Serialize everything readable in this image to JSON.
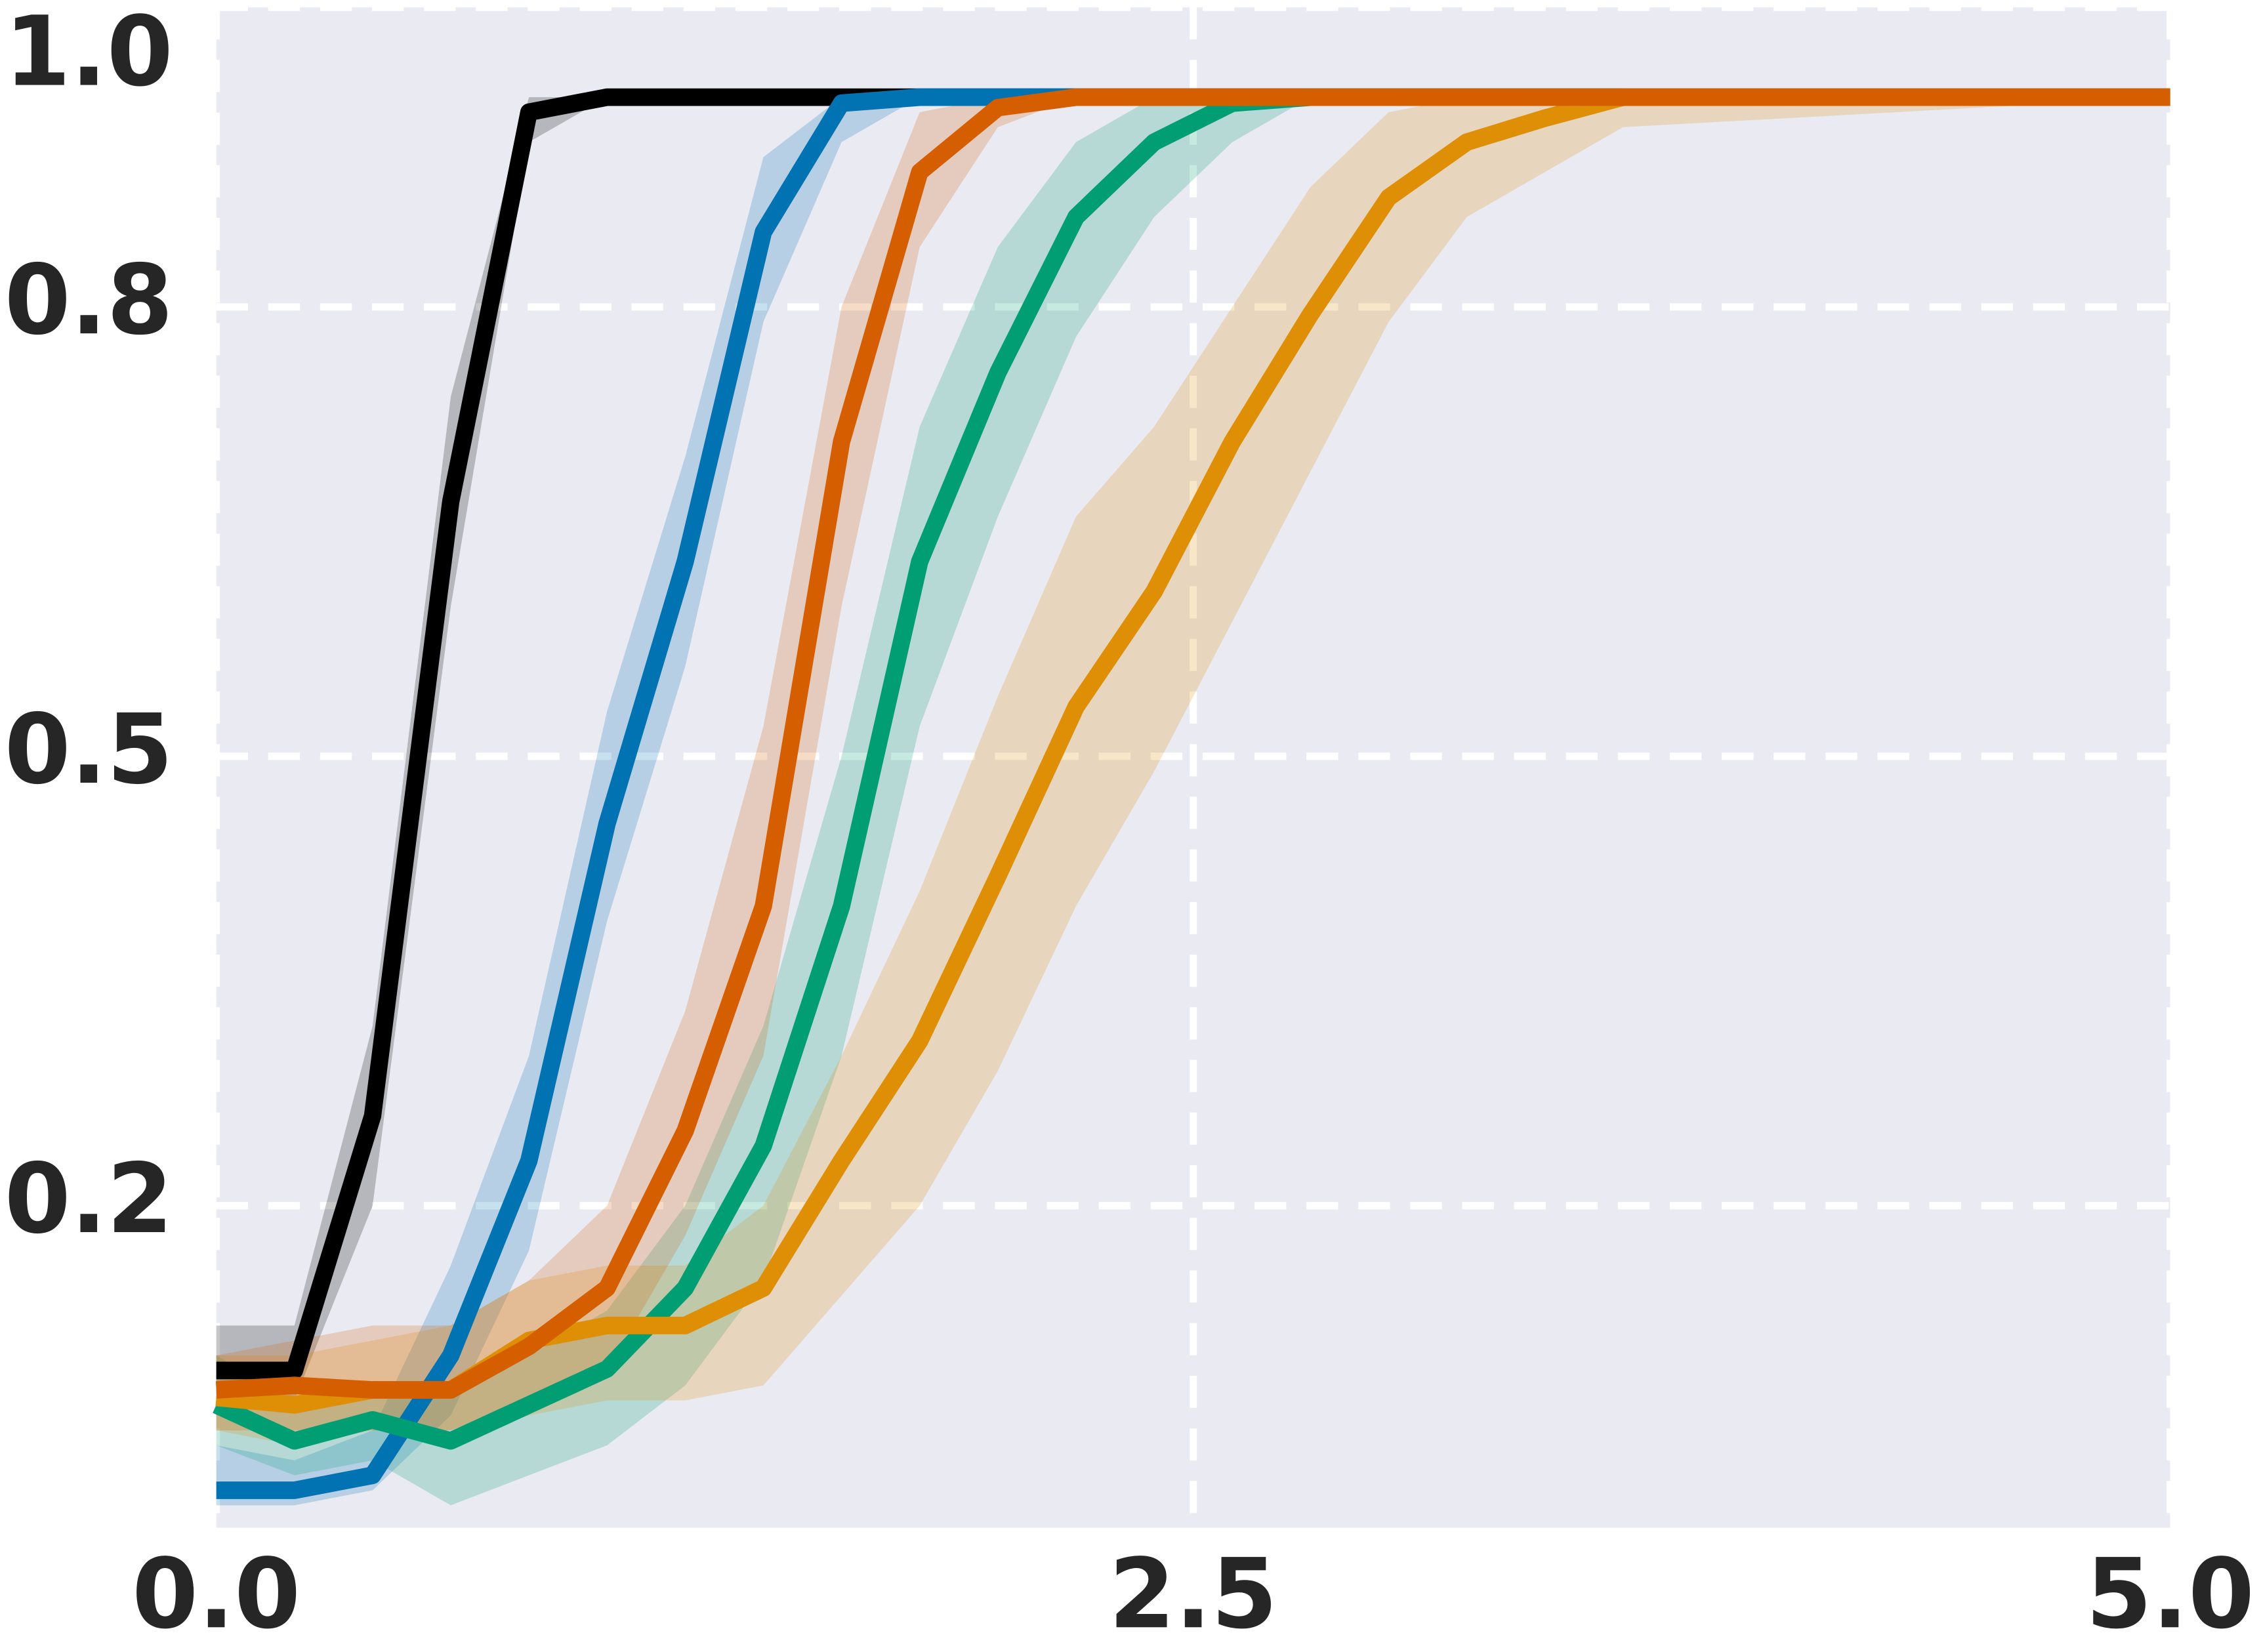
{
  "chart_data": {
    "type": "line",
    "x": [
      0,
      0.2,
      0.4,
      0.6,
      0.8,
      1.0,
      1.2,
      1.4,
      1.6,
      1.8,
      2.0,
      2.2,
      2.4,
      2.6,
      2.8,
      3.0,
      3.2,
      3.4,
      3.6,
      5.0
    ],
    "series": [
      {
        "color": "#000000",
        "values": [
          0.09,
          0.09,
          0.26,
          0.67,
          0.93,
          0.94,
          0.94,
          0.94,
          0.94,
          0.94,
          0.94,
          0.94,
          0.94,
          0.94,
          0.94,
          0.94,
          0.94,
          0.94,
          0.94,
          0.94
        ],
        "lower": [
          0.06,
          0.07,
          0.2,
          0.6,
          0.91,
          0.94,
          0.94,
          0.94,
          0.94,
          0.94,
          0.94,
          0.94,
          0.94,
          0.94,
          0.94,
          0.94,
          0.94,
          0.94,
          0.94,
          0.94
        ],
        "upper": [
          0.12,
          0.12,
          0.32,
          0.74,
          0.94,
          0.94,
          0.94,
          0.94,
          0.94,
          0.94,
          0.94,
          0.94,
          0.94,
          0.94,
          0.94,
          0.94,
          0.94,
          0.94,
          0.94,
          0.94
        ]
      },
      {
        "color": "#0173b2",
        "values": [
          0.01,
          0.01,
          0.02,
          0.1,
          0.23,
          0.455,
          0.63,
          0.85,
          0.936,
          0.94,
          0.94,
          0.94,
          0.94,
          0.94,
          0.94,
          0.94,
          0.94,
          0.94,
          0.94,
          0.94
        ],
        "lower": [
          0.0,
          0.0,
          0.01,
          0.06,
          0.17,
          0.39,
          0.56,
          0.79,
          0.91,
          0.94,
          0.94,
          0.94,
          0.94,
          0.94,
          0.94,
          0.94,
          0.94,
          0.94,
          0.94,
          0.94
        ],
        "upper": [
          0.04,
          0.03,
          0.05,
          0.16,
          0.3,
          0.53,
          0.7,
          0.9,
          0.94,
          0.94,
          0.94,
          0.94,
          0.94,
          0.94,
          0.94,
          0.94,
          0.94,
          0.94,
          0.94,
          0.94
        ]
      },
      {
        "color": "#029e73",
        "values": [
          0.067,
          0.043,
          0.057,
          0.043,
          0.067,
          0.091,
          0.145,
          0.24,
          0.4,
          0.63,
          0.756,
          0.86,
          0.91,
          0.936,
          0.94,
          0.94,
          0.94,
          0.94,
          0.94,
          0.94
        ],
        "lower": [
          0.04,
          0.02,
          0.03,
          0.0,
          0.02,
          0.04,
          0.08,
          0.15,
          0.3,
          0.52,
          0.66,
          0.78,
          0.86,
          0.91,
          0.94,
          0.94,
          0.94,
          0.94,
          0.94,
          0.94
        ],
        "upper": [
          0.1,
          0.07,
          0.08,
          0.08,
          0.1,
          0.13,
          0.2,
          0.32,
          0.5,
          0.72,
          0.84,
          0.91,
          0.94,
          0.94,
          0.94,
          0.94,
          0.94,
          0.94,
          0.94,
          0.94
        ]
      },
      {
        "color": "#de8f05",
        "values": [
          0.072,
          0.067,
          0.077,
          0.077,
          0.11,
          0.12,
          0.12,
          0.145,
          0.23,
          0.31,
          0.42,
          0.533,
          0.61,
          0.71,
          0.795,
          0.873,
          0.91,
          0.926,
          0.94,
          0.94
        ],
        "lower": [
          0.05,
          0.04,
          0.05,
          0.05,
          0.06,
          0.07,
          0.07,
          0.08,
          0.14,
          0.2,
          0.29,
          0.4,
          0.49,
          0.59,
          0.69,
          0.79,
          0.86,
          0.89,
          0.92,
          0.94
        ],
        "upper": [
          0.1,
          0.1,
          0.11,
          0.12,
          0.15,
          0.16,
          0.16,
          0.2,
          0.3,
          0.41,
          0.54,
          0.66,
          0.72,
          0.8,
          0.88,
          0.93,
          0.94,
          0.94,
          0.94,
          0.94
        ]
      },
      {
        "color": "#d55e00",
        "values": [
          0.077,
          0.08,
          0.077,
          0.077,
          0.106,
          0.145,
          0.25,
          0.4,
          0.71,
          0.89,
          0.933,
          0.94,
          0.94,
          0.94,
          0.94,
          0.94,
          0.94,
          0.94,
          0.94,
          0.94
        ],
        "lower": [
          0.05,
          0.05,
          0.05,
          0.05,
          0.07,
          0.09,
          0.18,
          0.3,
          0.6,
          0.84,
          0.92,
          0.94,
          0.94,
          0.94,
          0.94,
          0.94,
          0.94,
          0.94,
          0.94,
          0.94
        ],
        "upper": [
          0.1,
          0.11,
          0.12,
          0.12,
          0.15,
          0.2,
          0.33,
          0.52,
          0.8,
          0.93,
          0.94,
          0.94,
          0.94,
          0.94,
          0.94,
          0.94,
          0.94,
          0.94,
          0.94,
          0.94
        ]
      }
    ],
    "xlim": [
      0,
      5
    ],
    "xticks": [
      {
        "value": 0,
        "label": "0.0"
      },
      2.5,
      {
        "value": 5,
        "label": "5.0"
      }
    ],
    "ylim": [
      -0.015,
      1.0
    ],
    "yticks": [
      0.2,
      0.5,
      0.8,
      {
        "value": 1,
        "label": "1.0"
      }
    ],
    "grid": true
  }
}
